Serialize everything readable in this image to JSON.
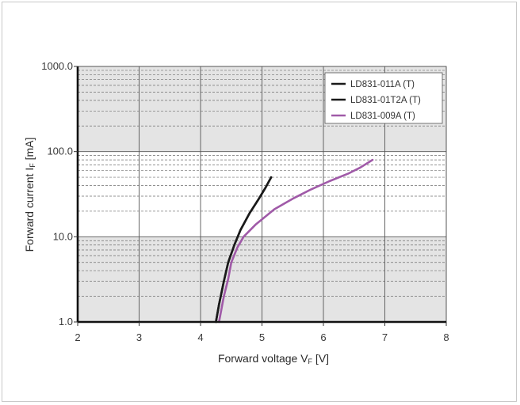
{
  "chart_data": {
    "type": "line",
    "xlabel": "Forward voltage V",
    "xlabel_sub": "F",
    "xlabel_unit": " [V]",
    "ylabel": "Forward current I",
    "ylabel_sub": "F",
    "ylabel_unit": " [mA]",
    "xlim": [
      2,
      8
    ],
    "ylim": [
      1,
      1000
    ],
    "yscale": "log",
    "x_ticks": [
      2,
      3,
      4,
      5,
      6,
      7,
      8
    ],
    "x_tick_labels": [
      "2",
      "3",
      "4",
      "5",
      "6",
      "7",
      "8"
    ],
    "y_ticks": [
      1,
      10,
      100,
      1000
    ],
    "y_tick_labels": [
      "1.0",
      "10.0",
      "100.0",
      "1000.0"
    ],
    "grid": true,
    "legend_position": "top-right",
    "series": [
      {
        "name": "LD831-011A (T)",
        "color": "#1a1a1a",
        "points": [
          [
            4.25,
            1.0
          ],
          [
            4.3,
            1.6
          ],
          [
            4.38,
            3.0
          ],
          [
            4.45,
            5.0
          ],
          [
            4.55,
            8.0
          ],
          [
            4.65,
            12.0
          ],
          [
            4.8,
            19.0
          ],
          [
            4.95,
            28.0
          ],
          [
            5.05,
            37.0
          ],
          [
            5.15,
            50.0
          ]
        ]
      },
      {
        "name": "LD831-01T2A (T)",
        "color": "#1a1a1a",
        "points": [
          [
            4.25,
            1.0
          ],
          [
            4.3,
            1.6
          ],
          [
            4.38,
            3.0
          ],
          [
            4.45,
            5.0
          ],
          [
            4.55,
            8.0
          ],
          [
            4.65,
            12.0
          ],
          [
            4.8,
            19.0
          ],
          [
            4.95,
            28.0
          ],
          [
            5.05,
            37.0
          ],
          [
            5.15,
            50.0
          ]
        ]
      },
      {
        "name": "LD831-009A (T)",
        "color": "#a05aa8",
        "points": [
          [
            4.3,
            1.0
          ],
          [
            4.38,
            2.0
          ],
          [
            4.45,
            3.2
          ],
          [
            4.5,
            5.0
          ],
          [
            4.6,
            7.5
          ],
          [
            4.7,
            10.0
          ],
          [
            4.9,
            14.0
          ],
          [
            5.2,
            21.0
          ],
          [
            5.5,
            28.0
          ],
          [
            5.8,
            36.0
          ],
          [
            6.1,
            45.0
          ],
          [
            6.4,
            55.0
          ],
          [
            6.6,
            65.0
          ],
          [
            6.8,
            80.0
          ]
        ]
      }
    ]
  }
}
